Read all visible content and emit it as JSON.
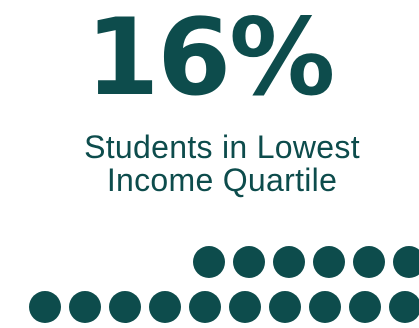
{
  "stat": {
    "value": "16%",
    "label_line1": "Students in Lowest",
    "label_line2": "Income Quartile"
  },
  "dot_grid": {
    "row1_count": 6,
    "row2_count": 10
  },
  "colors": {
    "brand": "#0d4c4c",
    "background": "#ffffff"
  }
}
